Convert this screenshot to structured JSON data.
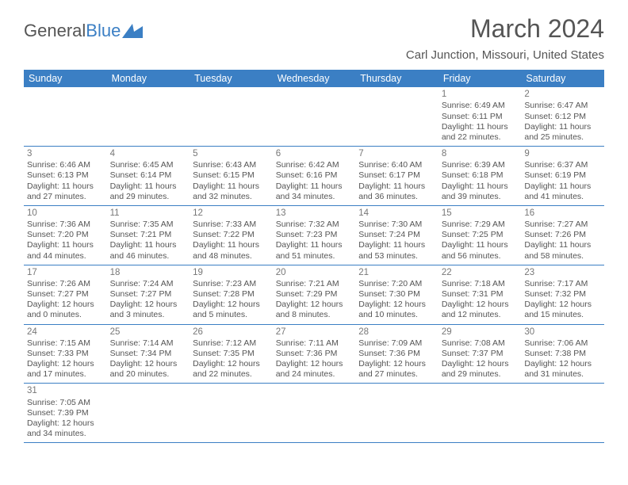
{
  "brand": {
    "name_part1": "General",
    "name_part2": "Blue"
  },
  "title": "March 2024",
  "location": "Carl Junction, Missouri, United States",
  "colors": {
    "header_bg": "#3b7fc4",
    "header_text": "#ffffff",
    "border": "#3b7fc4",
    "body_text": "#555555"
  },
  "weekdays": [
    "Sunday",
    "Monday",
    "Tuesday",
    "Wednesday",
    "Thursday",
    "Friday",
    "Saturday"
  ],
  "first_weekday_index": 5,
  "days": [
    {
      "n": 1,
      "sunrise": "6:49 AM",
      "sunset": "6:11 PM",
      "daylight": "11 hours and 22 minutes."
    },
    {
      "n": 2,
      "sunrise": "6:47 AM",
      "sunset": "6:12 PM",
      "daylight": "11 hours and 25 minutes."
    },
    {
      "n": 3,
      "sunrise": "6:46 AM",
      "sunset": "6:13 PM",
      "daylight": "11 hours and 27 minutes."
    },
    {
      "n": 4,
      "sunrise": "6:45 AM",
      "sunset": "6:14 PM",
      "daylight": "11 hours and 29 minutes."
    },
    {
      "n": 5,
      "sunrise": "6:43 AM",
      "sunset": "6:15 PM",
      "daylight": "11 hours and 32 minutes."
    },
    {
      "n": 6,
      "sunrise": "6:42 AM",
      "sunset": "6:16 PM",
      "daylight": "11 hours and 34 minutes."
    },
    {
      "n": 7,
      "sunrise": "6:40 AM",
      "sunset": "6:17 PM",
      "daylight": "11 hours and 36 minutes."
    },
    {
      "n": 8,
      "sunrise": "6:39 AM",
      "sunset": "6:18 PM",
      "daylight": "11 hours and 39 minutes."
    },
    {
      "n": 9,
      "sunrise": "6:37 AM",
      "sunset": "6:19 PM",
      "daylight": "11 hours and 41 minutes."
    },
    {
      "n": 10,
      "sunrise": "7:36 AM",
      "sunset": "7:20 PM",
      "daylight": "11 hours and 44 minutes."
    },
    {
      "n": 11,
      "sunrise": "7:35 AM",
      "sunset": "7:21 PM",
      "daylight": "11 hours and 46 minutes."
    },
    {
      "n": 12,
      "sunrise": "7:33 AM",
      "sunset": "7:22 PM",
      "daylight": "11 hours and 48 minutes."
    },
    {
      "n": 13,
      "sunrise": "7:32 AM",
      "sunset": "7:23 PM",
      "daylight": "11 hours and 51 minutes."
    },
    {
      "n": 14,
      "sunrise": "7:30 AM",
      "sunset": "7:24 PM",
      "daylight": "11 hours and 53 minutes."
    },
    {
      "n": 15,
      "sunrise": "7:29 AM",
      "sunset": "7:25 PM",
      "daylight": "11 hours and 56 minutes."
    },
    {
      "n": 16,
      "sunrise": "7:27 AM",
      "sunset": "7:26 PM",
      "daylight": "11 hours and 58 minutes."
    },
    {
      "n": 17,
      "sunrise": "7:26 AM",
      "sunset": "7:27 PM",
      "daylight": "12 hours and 0 minutes."
    },
    {
      "n": 18,
      "sunrise": "7:24 AM",
      "sunset": "7:27 PM",
      "daylight": "12 hours and 3 minutes."
    },
    {
      "n": 19,
      "sunrise": "7:23 AM",
      "sunset": "7:28 PM",
      "daylight": "12 hours and 5 minutes."
    },
    {
      "n": 20,
      "sunrise": "7:21 AM",
      "sunset": "7:29 PM",
      "daylight": "12 hours and 8 minutes."
    },
    {
      "n": 21,
      "sunrise": "7:20 AM",
      "sunset": "7:30 PM",
      "daylight": "12 hours and 10 minutes."
    },
    {
      "n": 22,
      "sunrise": "7:18 AM",
      "sunset": "7:31 PM",
      "daylight": "12 hours and 12 minutes."
    },
    {
      "n": 23,
      "sunrise": "7:17 AM",
      "sunset": "7:32 PM",
      "daylight": "12 hours and 15 minutes."
    },
    {
      "n": 24,
      "sunrise": "7:15 AM",
      "sunset": "7:33 PM",
      "daylight": "12 hours and 17 minutes."
    },
    {
      "n": 25,
      "sunrise": "7:14 AM",
      "sunset": "7:34 PM",
      "daylight": "12 hours and 20 minutes."
    },
    {
      "n": 26,
      "sunrise": "7:12 AM",
      "sunset": "7:35 PM",
      "daylight": "12 hours and 22 minutes."
    },
    {
      "n": 27,
      "sunrise": "7:11 AM",
      "sunset": "7:36 PM",
      "daylight": "12 hours and 24 minutes."
    },
    {
      "n": 28,
      "sunrise": "7:09 AM",
      "sunset": "7:36 PM",
      "daylight": "12 hours and 27 minutes."
    },
    {
      "n": 29,
      "sunrise": "7:08 AM",
      "sunset": "7:37 PM",
      "daylight": "12 hours and 29 minutes."
    },
    {
      "n": 30,
      "sunrise": "7:06 AM",
      "sunset": "7:38 PM",
      "daylight": "12 hours and 31 minutes."
    },
    {
      "n": 31,
      "sunrise": "7:05 AM",
      "sunset": "7:39 PM",
      "daylight": "12 hours and 34 minutes."
    }
  ],
  "labels": {
    "sunrise": "Sunrise:",
    "sunset": "Sunset:",
    "daylight": "Daylight:"
  }
}
